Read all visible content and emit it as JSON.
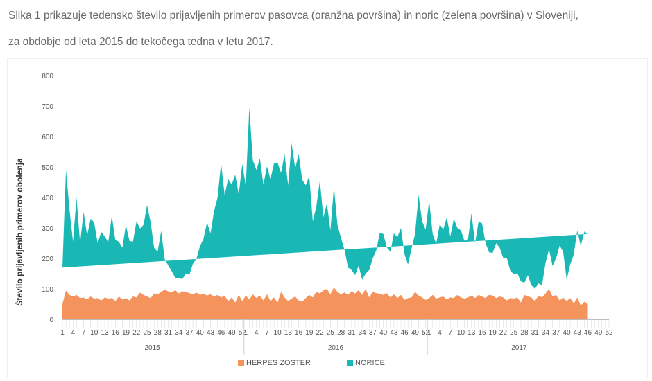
{
  "caption": {
    "line1": "Slika 1 prikazuje tedensko število prijavljenih primerov pasovca (oranžna površina) in noric (zelena površina) v Sloveniji,",
    "line2": "za obdobje od leta 2015 do tekočega tedna v letu 2017."
  },
  "chart_data": {
    "type": "area",
    "stacked": true,
    "ylabel": "Število prijavljenih primerov obolenja",
    "ylim": [
      0,
      800
    ],
    "yticks": [
      0,
      100,
      200,
      300,
      400,
      500,
      600,
      700,
      800
    ],
    "years": [
      {
        "label": "2015",
        "weeks": 52
      },
      {
        "label": "2016",
        "weeks": 52
      },
      {
        "label": "2017",
        "weeks": 52
      }
    ],
    "week_tick_labels": [
      "1",
      "4",
      "7",
      "10",
      "13",
      "16",
      "19",
      "22",
      "25",
      "28",
      "31",
      "34",
      "37",
      "40",
      "43",
      "46",
      "49",
      "52"
    ],
    "legend": {
      "herpes": "HERPES ZOSTER",
      "norice": "NORICE"
    },
    "series": [
      {
        "name": "HERPES ZOSTER",
        "color": "#f4935c",
        "values": [
          50,
          95,
          80,
          75,
          80,
          70,
          72,
          65,
          75,
          68,
          70,
          62,
          72,
          68,
          70,
          60,
          75,
          65,
          70,
          62,
          75,
          72,
          88,
          80,
          75,
          70,
          85,
          82,
          90,
          98,
          92,
          88,
          96,
          85,
          92,
          90,
          86,
          82,
          88,
          80,
          84,
          78,
          82,
          75,
          80,
          72,
          78,
          60,
          72,
          55,
          80,
          60,
          78,
          65,
          82,
          70,
          78,
          62,
          82,
          60,
          72,
          55,
          90,
          72,
          60,
          68,
          75,
          62,
          58,
          70,
          80,
          72,
          90,
          85,
          95,
          100,
          82,
          105,
          90,
          82,
          88,
          80,
          92,
          85,
          96,
          80,
          100,
          72,
          90,
          86,
          84,
          80,
          86,
          72,
          82,
          70,
          80,
          64,
          70,
          72,
          90,
          78,
          72,
          64,
          70,
          80,
          68,
          72,
          75,
          65,
          72,
          70,
          80,
          72,
          68,
          72,
          78,
          70,
          80,
          75,
          70,
          80,
          78,
          70,
          75,
          72,
          62,
          70,
          68,
          72,
          55,
          80,
          75,
          72,
          60,
          78,
          72,
          85,
          100,
          75,
          80,
          62,
          72,
          60,
          70,
          52,
          72,
          45,
          58,
          50
        ]
      },
      {
        "name": "NORICE",
        "color": "#1ab8b5",
        "values": [
          120,
          395,
          280,
          180,
          320,
          180,
          280,
          210,
          255,
          250,
          180,
          225,
          200,
          185,
          270,
          200,
          180,
          170,
          240,
          195,
          180,
          250,
          210,
          230,
          300,
          250,
          150,
          140,
          200,
          100,
          85,
          70,
          40,
          50,
          40,
          60,
          60,
          100,
          110,
          160,
          180,
          240,
          200,
          280,
          320,
          440,
          330,
          400,
          370,
          420,
          330,
          450,
          360,
          630,
          440,
          420,
          450,
          380,
          420,
          400,
          440,
          460,
          390,
          470,
          380,
          510,
          420,
          480,
          400,
          370,
          390,
          250,
          280,
          370,
          240,
          280,
          210,
          330,
          220,
          185,
          140,
          90,
          70,
          60,
          80,
          50,
          50,
          90,
          110,
          140,
          200,
          200,
          150,
          150,
          200,
          200,
          220,
          150,
          110,
          160,
          190,
          330,
          250,
          230,
          320,
          200,
          180,
          240,
          220,
          270,
          200,
          260,
          220,
          220,
          190,
          190,
          270,
          180,
          240,
          240,
          180,
          140,
          140,
          180,
          160,
          130,
          140,
          90,
          80,
          80,
          70,
          40,
          70,
          40,
          40,
          40,
          40,
          100,
          130,
          100,
          120,
          180,
          150,
          70,
          110,
          160,
          220,
          195,
          230,
          230,
          185,
          160
        ]
      }
    ]
  }
}
